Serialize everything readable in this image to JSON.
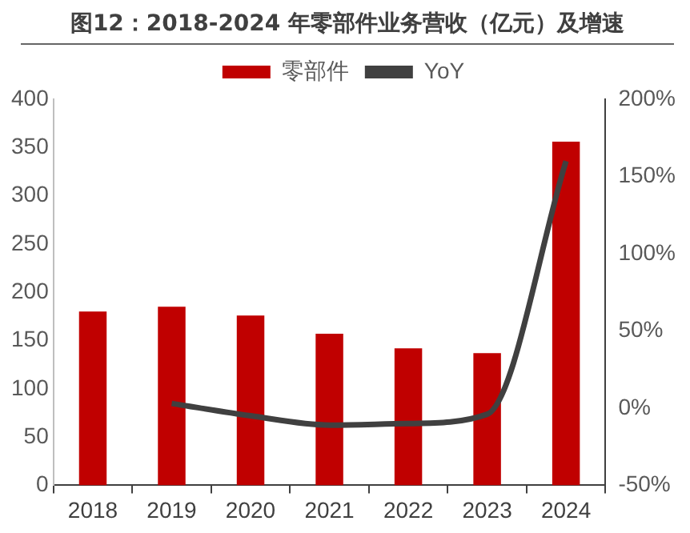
{
  "chart_data": {
    "type": "bar",
    "title": "图12：2018-2024 年零部件业务营收（亿元）及增速",
    "categories": [
      "2018",
      "2019",
      "2020",
      "2021",
      "2022",
      "2023",
      "2024"
    ],
    "series": [
      {
        "name": "零部件",
        "color": "#c00000",
        "values": [
          180,
          185,
          176,
          157,
          142,
          137,
          356
        ]
      },
      {
        "name": "YoY",
        "type": "line",
        "axis": "y2",
        "color": "#404040",
        "values": [
          null,
          3,
          -5,
          -11,
          -10,
          -4,
          160
        ]
      }
    ],
    "ylim": [
      0,
      400
    ],
    "yticks": [
      0,
      50,
      100,
      150,
      200,
      250,
      300,
      350,
      400
    ],
    "y2lim": [
      -50,
      200
    ],
    "y2ticks": [
      {
        "value": -50,
        "label": "-50%"
      },
      {
        "value": 0,
        "label": "0%"
      },
      {
        "value": 50,
        "label": "50%"
      },
      {
        "value": 100,
        "label": "100%"
      },
      {
        "value": 150,
        "label": "150%"
      },
      {
        "value": 200,
        "label": "200%"
      }
    ],
    "legend": "top",
    "grid": false,
    "marker": "none"
  }
}
